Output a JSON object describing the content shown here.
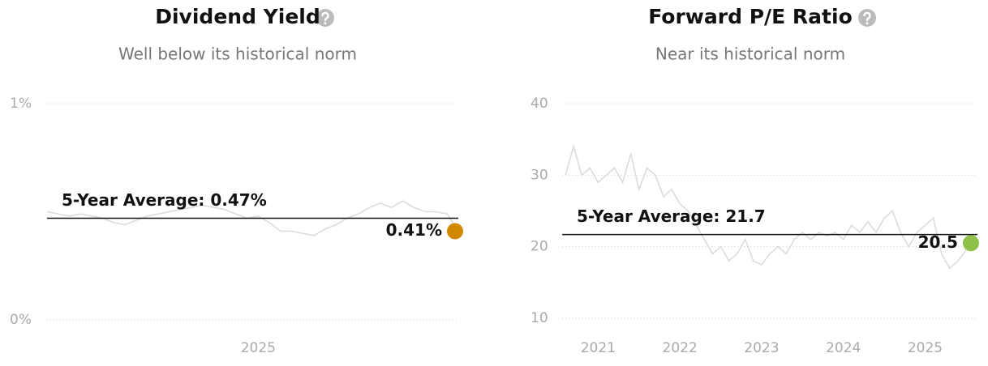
{
  "chart_data": [
    {
      "type": "line",
      "title": "Dividend Yield",
      "subtitle": "Well below its historical norm",
      "x": [
        2024.05,
        2024.1,
        2024.15,
        2024.2,
        2024.25,
        2024.3,
        2024.35,
        2024.4,
        2024.45,
        2024.5,
        2024.55,
        2024.6,
        2024.65,
        2024.7,
        2024.75,
        2024.8,
        2024.85,
        2024.9,
        2024.95,
        2025.0,
        2025.05,
        2025.1,
        2025.15,
        2025.2,
        2025.25,
        2025.3,
        2025.35,
        2025.4,
        2025.45,
        2025.5,
        2025.55,
        2025.6,
        2025.65,
        2025.7,
        2025.75,
        2025.8,
        2025.85,
        2025.9
      ],
      "values": [
        0.5,
        0.49,
        0.48,
        0.49,
        0.48,
        0.47,
        0.45,
        0.44,
        0.46,
        0.48,
        0.49,
        0.5,
        0.51,
        0.52,
        0.53,
        0.52,
        0.51,
        0.49,
        0.47,
        0.48,
        0.45,
        0.41,
        0.41,
        0.4,
        0.39,
        0.42,
        0.44,
        0.47,
        0.49,
        0.52,
        0.54,
        0.52,
        0.55,
        0.52,
        0.5,
        0.5,
        0.49,
        0.41
      ],
      "color": "#dcdcdc",
      "xlim": [
        2024.05,
        2025.9
      ],
      "xticks": [
        2025
      ],
      "ylim": [
        0,
        1
      ],
      "yticks": [
        {
          "value": 0,
          "label": "0%"
        },
        {
          "value": 1,
          "label": "1%"
        }
      ],
      "grid": true,
      "average": 0.47,
      "average_label": "5-Year Average: 0.47%",
      "current": 0.41,
      "current_label": "0.41%",
      "current_color": "#d18a00"
    },
    {
      "type": "line",
      "title": "Forward P/E Ratio",
      "subtitle": "Near its historical norm",
      "x": [
        2020.6,
        2020.7,
        2020.8,
        2020.9,
        2021.0,
        2021.1,
        2021.2,
        2021.3,
        2021.4,
        2021.5,
        2021.6,
        2021.7,
        2021.8,
        2021.9,
        2022.0,
        2022.1,
        2022.2,
        2022.3,
        2022.4,
        2022.5,
        2022.6,
        2022.7,
        2022.8,
        2022.9,
        2023.0,
        2023.1,
        2023.2,
        2023.3,
        2023.4,
        2023.5,
        2023.6,
        2023.7,
        2023.8,
        2023.9,
        2024.0,
        2024.1,
        2024.2,
        2024.3,
        2024.4,
        2024.5,
        2024.6,
        2024.7,
        2024.8,
        2024.9,
        2025.0,
        2025.1,
        2025.2,
        2025.3,
        2025.4,
        2025.5,
        2025.6
      ],
      "values": [
        30,
        34,
        30,
        31,
        29,
        30,
        31,
        29,
        33,
        28,
        31,
        30,
        27,
        28,
        26,
        25,
        23,
        21,
        19,
        20,
        18,
        19,
        21,
        18,
        17.5,
        19,
        20,
        19,
        21,
        22,
        21,
        22,
        21.5,
        22,
        21,
        23,
        22,
        23.5,
        22,
        24,
        25,
        22,
        20,
        22,
        23,
        24,
        19,
        17,
        18,
        19.5,
        20.5
      ],
      "color": "#dcdcdc",
      "xlim": [
        2020.56,
        2025.64
      ],
      "xticks": [
        2021,
        2022,
        2023,
        2024,
        2025
      ],
      "ylim": [
        10,
        40
      ],
      "yticks": [
        10,
        20,
        30,
        40
      ],
      "grid": true,
      "average": 21.7,
      "average_label": "5-Year Average: 21.7",
      "current": 20.5,
      "current_label": "20.5",
      "current_color": "#8fc04a"
    }
  ]
}
